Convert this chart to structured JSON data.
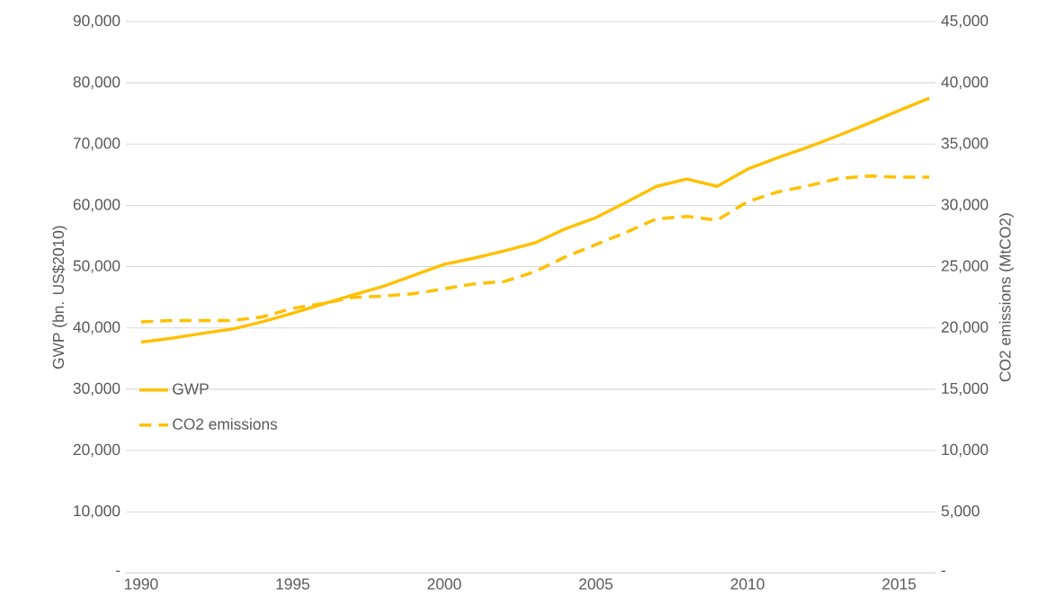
{
  "chart_data": {
    "type": "line",
    "x": [
      1990,
      1991,
      1992,
      1993,
      1994,
      1995,
      1996,
      1997,
      1998,
      1999,
      2000,
      2001,
      2002,
      2003,
      2004,
      2005,
      2006,
      2007,
      2008,
      2009,
      2010,
      2011,
      2012,
      2013,
      2014,
      2015,
      2016
    ],
    "series": [
      {
        "name": "GWP",
        "color": "#ffc000",
        "line_style": "solid",
        "values": [
          37700,
          38300,
          39100,
          39800,
          41000,
          42400,
          43900,
          45400,
          46800,
          48600,
          50400,
          51400,
          52600,
          53900,
          56200,
          58000,
          60500,
          63100,
          64300,
          63100,
          65900,
          67800,
          69500,
          71400,
          73400,
          75500,
          77500
        ]
      },
      {
        "name": "CO2 emissions",
        "color": "#ffc000",
        "line_style": "dashed",
        "axis": "y2",
        "values": [
          20500,
          20600,
          20600,
          20600,
          20900,
          21600,
          22000,
          22500,
          22600,
          22800,
          23200,
          23600,
          23800,
          24600,
          25800,
          26800,
          27800,
          28900,
          29100,
          28800,
          30300,
          31100,
          31600,
          32200,
          32400,
          32300,
          32300
        ]
      }
    ],
    "ylabel": "GWP (bn. US$2010)",
    "y2label": "CO2 emissions (MtCO2)",
    "xlim": [
      1989.5,
      2016.2
    ],
    "xticks": [
      1990,
      1995,
      2000,
      2005,
      2010,
      2015
    ],
    "ylim": [
      0,
      90000
    ],
    "yticks": [
      {
        "value": 0,
        "label": "-"
      },
      {
        "value": 10000,
        "label": "10,000"
      },
      {
        "value": 20000,
        "label": "20,000"
      },
      {
        "value": 30000,
        "label": "30,000"
      },
      {
        "value": 40000,
        "label": "40,000"
      },
      {
        "value": 50000,
        "label": "50,000"
      },
      {
        "value": 60000,
        "label": "60,000"
      },
      {
        "value": 70000,
        "label": "70,000"
      },
      {
        "value": 80000,
        "label": "80,000"
      },
      {
        "value": 90000,
        "label": "90,000"
      }
    ],
    "y2lim": [
      0,
      45000
    ],
    "y2ticks": [
      {
        "value": 0,
        "label": "-"
      },
      {
        "value": 5000,
        "label": "5,000"
      },
      {
        "value": 10000,
        "label": "10,000"
      },
      {
        "value": 15000,
        "label": "15,000"
      },
      {
        "value": 20000,
        "label": "20,000"
      },
      {
        "value": 25000,
        "label": "25,000"
      },
      {
        "value": 30000,
        "label": "30,000"
      },
      {
        "value": 35000,
        "label": "35,000"
      },
      {
        "value": 40000,
        "label": "40,000"
      },
      {
        "value": 45000,
        "label": "45,000"
      }
    ],
    "grid": "y",
    "legend": "left"
  }
}
